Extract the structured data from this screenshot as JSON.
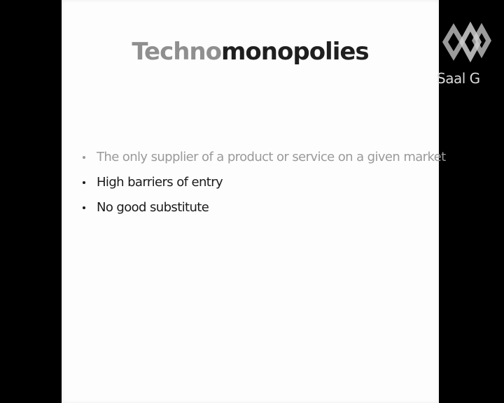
{
  "slide": {
    "title_part1": "Techno",
    "title_part2": "monopolies",
    "bullets": [
      {
        "text": "The only supplier of a product or service on a given market",
        "color": "#9a9a9a"
      },
      {
        "text": "High barriers of entry",
        "color": "#1a1a1a"
      },
      {
        "text": "No good substitute",
        "color": "#1a1a1a"
      }
    ]
  },
  "overlay": {
    "logo_icon": "room-logo-icon",
    "room_label": "Saal G"
  },
  "colors": {
    "background": "#000000",
    "slide": "#fdfdfd",
    "title_light": "#8f8f8f",
    "title_dark": "#1f1f1f"
  }
}
